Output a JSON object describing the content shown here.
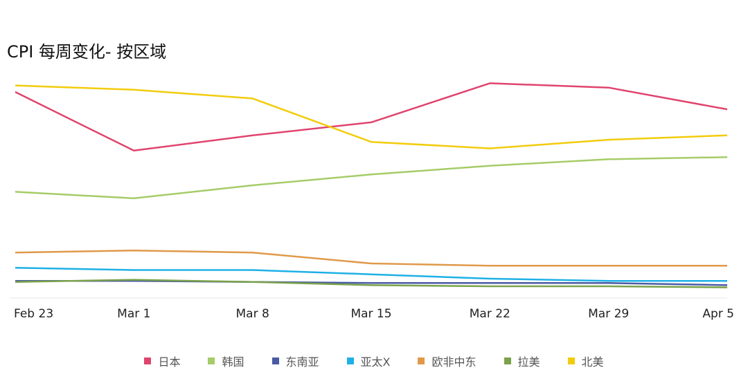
{
  "chart_data": {
    "type": "line",
    "title": "CPI 每周变化- 按区域",
    "categories": [
      "Feb 23",
      "Mar 1",
      "Mar 8",
      "Mar 15",
      "Mar 22",
      "Mar 29",
      "Apr 5"
    ],
    "ylim": [
      0,
      100
    ],
    "grid": false,
    "legend_position": "bottom",
    "series": [
      {
        "name": "日本",
        "color": "#e0446e",
        "values": [
          93,
          66,
          73,
          79,
          97,
          95,
          85
        ]
      },
      {
        "name": "韩国",
        "color": "#a5cc68",
        "values": [
          47,
          44,
          50,
          55,
          59,
          62,
          63
        ]
      },
      {
        "name": "东南亚",
        "color": "#4a5aa3",
        "values": [
          6,
          6,
          5.5,
          5,
          5,
          5,
          4
        ]
      },
      {
        "name": "亚太X",
        "color": "#1eb0e6",
        "values": [
          12,
          11,
          11,
          9,
          7,
          6,
          6
        ]
      },
      {
        "name": "欧非中东",
        "color": "#e0994a",
        "values": [
          19,
          20,
          19,
          14,
          13,
          13,
          13
        ]
      },
      {
        "name": "拉美",
        "color": "#7aa24a",
        "values": [
          5.5,
          6.5,
          5.5,
          4,
          3.5,
          3.5,
          3
        ]
      },
      {
        "name": "北美",
        "color": "#f2cc0c",
        "values": [
          96,
          94,
          90,
          70,
          67,
          71,
          73
        ]
      }
    ]
  }
}
